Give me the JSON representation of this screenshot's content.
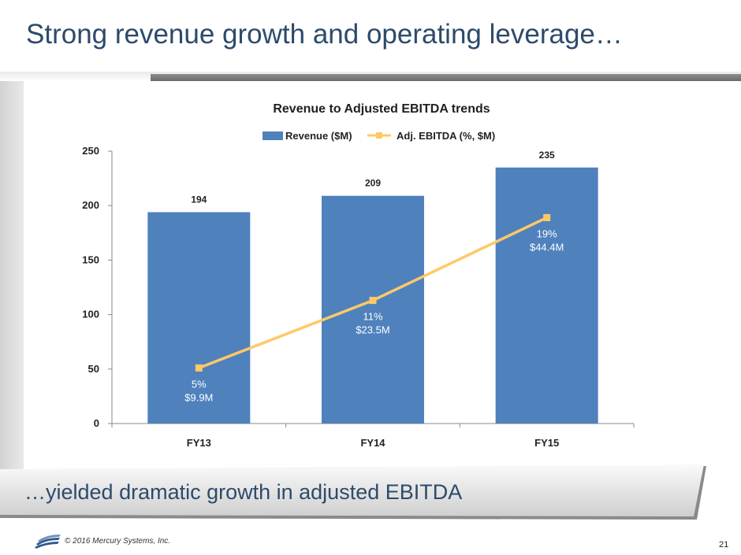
{
  "slide": {
    "title": "Strong revenue growth and operating leverage…",
    "banner_text": "…yielded dramatic growth in adjusted EBITDA",
    "copyright": "© 2016 Mercury Systems, Inc.",
    "page_number": "21"
  },
  "chart_data": {
    "type": "bar",
    "title": "Revenue to Adjusted EBITDA trends",
    "categories": [
      "FY13",
      "FY14",
      "FY15"
    ],
    "ylim": [
      0,
      250
    ],
    "yticks": [
      0,
      50,
      100,
      150,
      200,
      250
    ],
    "grid": false,
    "legend_position": "top",
    "series": [
      {
        "name": "Revenue ($M)",
        "type": "bar",
        "color": "#4f81bd",
        "values": [
          194,
          209,
          235
        ],
        "labels": [
          "194",
          "209",
          "235"
        ]
      },
      {
        "name": "Adj. EBITDA (%, $M)",
        "type": "line",
        "color": "#ffc966",
        "values": [
          51,
          113,
          189
        ],
        "labels": [
          [
            "5%",
            "$9.9M"
          ],
          [
            "11%",
            "$23.5M"
          ],
          [
            "19%",
            "$44.4M"
          ]
        ]
      }
    ]
  }
}
